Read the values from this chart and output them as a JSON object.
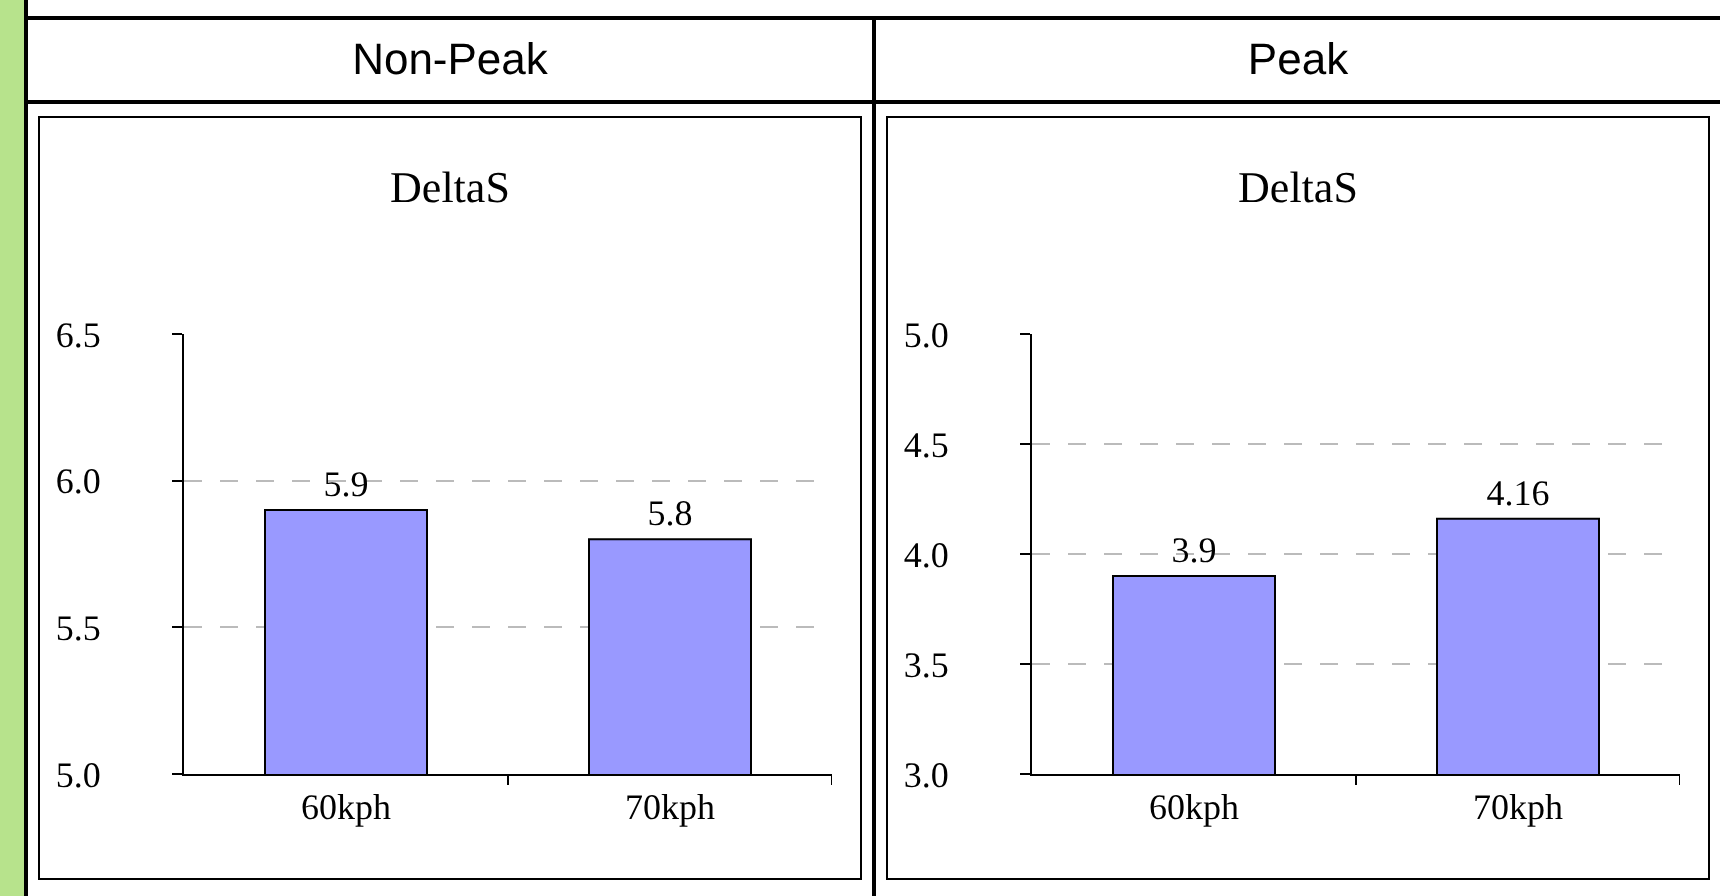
{
  "chart_data": [
    {
      "type": "bar",
      "title": "Non-Peak",
      "subtitle": "DeltaS",
      "categories": [
        "60kph",
        "70kph"
      ],
      "values": [
        5.9,
        5.8
      ],
      "color": "#9999ff",
      "ylim": [
        5.0,
        6.5
      ],
      "yticks": [
        {
          "value": 5.0,
          "label": "5.0"
        },
        {
          "value": 5.5,
          "label": "5.5"
        },
        {
          "value": 6.0,
          "label": "6.0"
        },
        {
          "value": 6.5,
          "label": "6.5"
        }
      ],
      "grid": "y",
      "data_labels": true
    },
    {
      "type": "bar",
      "title": "Peak",
      "subtitle": "DeltaS",
      "categories": [
        "60kph",
        "70kph"
      ],
      "values": [
        3.9,
        4.16
      ],
      "color": "#9999ff",
      "ylim": [
        3.0,
        5.0
      ],
      "yticks": [
        {
          "value": 3.0,
          "label": "3.0"
        },
        {
          "value": 3.5,
          "label": "3.5"
        },
        {
          "value": 4.0,
          "label": "4.0"
        },
        {
          "value": 4.5,
          "label": "4.5"
        },
        {
          "value": 5.0,
          "label": "5.0"
        }
      ],
      "grid": "y",
      "data_labels": true
    }
  ]
}
